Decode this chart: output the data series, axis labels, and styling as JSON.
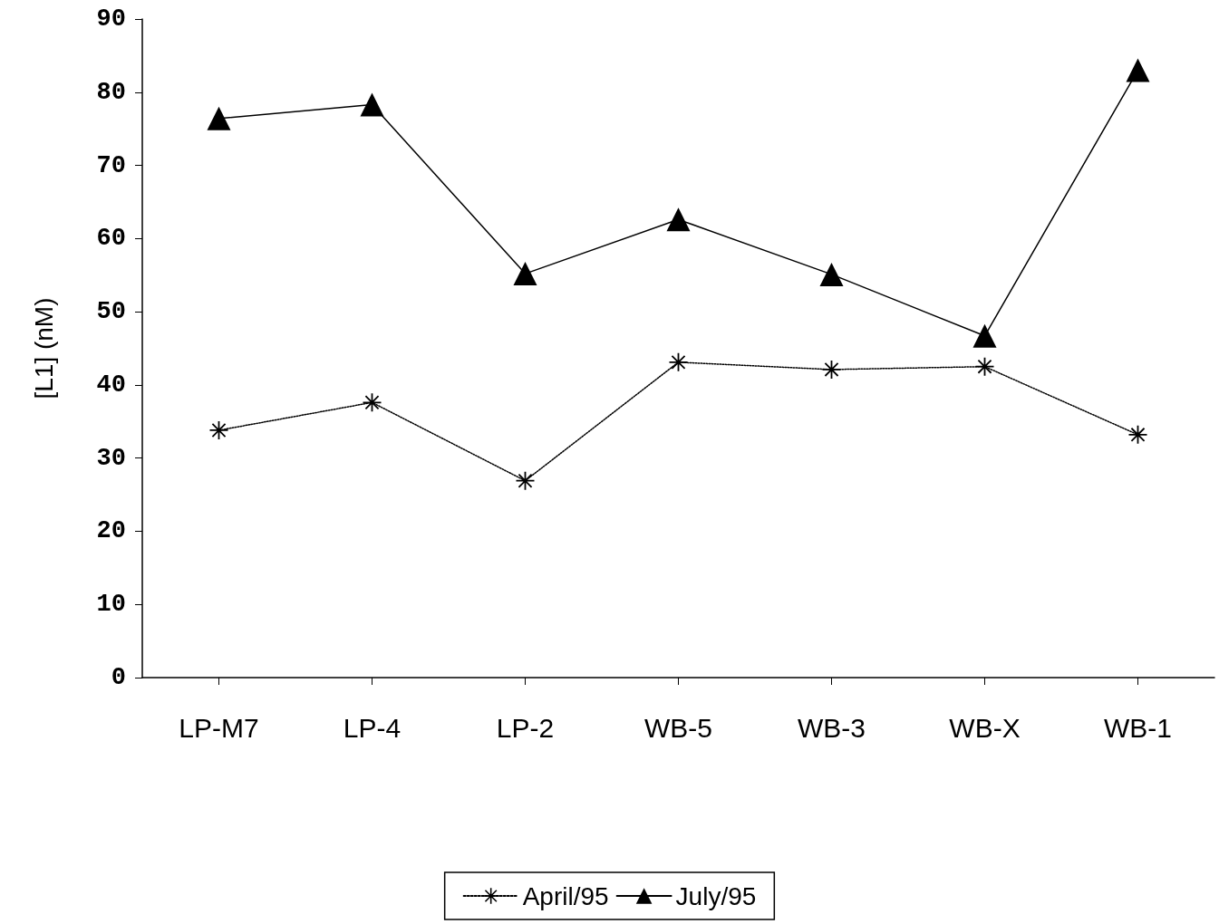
{
  "chart_data": {
    "type": "line",
    "ylabel": "[L1] (nM)",
    "categories": [
      "LP-M7",
      "LP-4",
      "LP-2",
      "WB-5",
      "WB-3",
      "WB-X",
      "WB-1"
    ],
    "series": [
      {
        "name": "April/95",
        "color": "#000000",
        "marker": "star",
        "line_style": "dotted",
        "values": [
          33.8,
          37.6,
          26.9,
          43.1,
          42.1,
          42.5,
          33.2
        ]
      },
      {
        "name": "July/95",
        "color": "#000000",
        "marker": "triangle",
        "line_style": "solid",
        "values": [
          76.4,
          78.3,
          55.2,
          62.6,
          55.1,
          46.7,
          83.0
        ]
      }
    ],
    "ylim": [
      0,
      90
    ],
    "yticks": [
      0,
      10,
      20,
      30,
      40,
      50,
      60,
      70,
      80,
      90
    ],
    "grid": false,
    "legend": "bottom"
  }
}
